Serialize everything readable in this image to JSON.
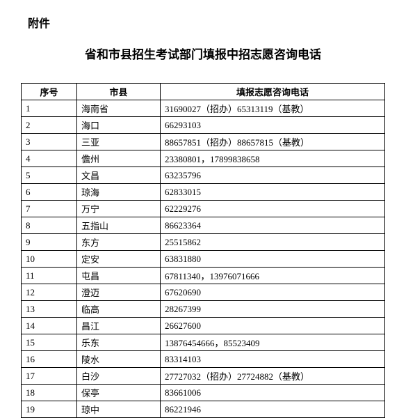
{
  "attachment_label": "附件",
  "title": "省和市县招生考试部门填报中招志愿咨询电话",
  "table": {
    "headers": {
      "index": "序号",
      "city": "市县",
      "phone": "填报志愿咨询电话"
    },
    "rows": [
      {
        "index": "1",
        "city": "海南省",
        "phone": "31690027（招办）65313119（基教）"
      },
      {
        "index": "2",
        "city": "海口",
        "phone": "66293103"
      },
      {
        "index": "3",
        "city": "三亚",
        "phone": "88657851（招办）88657815（基教）"
      },
      {
        "index": "4",
        "city": "儋州",
        "phone": "23380801，17899838658"
      },
      {
        "index": "5",
        "city": "文昌",
        "phone": "63235796"
      },
      {
        "index": "6",
        "city": "琼海",
        "phone": "62833015"
      },
      {
        "index": "7",
        "city": "万宁",
        "phone": "62229276"
      },
      {
        "index": "8",
        "city": "五指山",
        "phone": "86623364"
      },
      {
        "index": "9",
        "city": "东方",
        "phone": "25515862"
      },
      {
        "index": "10",
        "city": "定安",
        "phone": "63831880"
      },
      {
        "index": "11",
        "city": "屯昌",
        "phone": "67811340，13976071666"
      },
      {
        "index": "12",
        "city": "澄迈",
        "phone": "67620690"
      },
      {
        "index": "13",
        "city": "临高",
        "phone": "28267399"
      },
      {
        "index": "14",
        "city": "昌江",
        "phone": "26627600"
      },
      {
        "index": "15",
        "city": "乐东",
        "phone": "13876454666，85523409"
      },
      {
        "index": "16",
        "city": "陵水",
        "phone": "83314103"
      },
      {
        "index": "17",
        "city": "白沙",
        "phone": "27727032（招办）27724882（基教）"
      },
      {
        "index": "18",
        "city": "保亭",
        "phone": "83661006"
      },
      {
        "index": "19",
        "city": "琼中",
        "phone": "86221946"
      }
    ]
  }
}
